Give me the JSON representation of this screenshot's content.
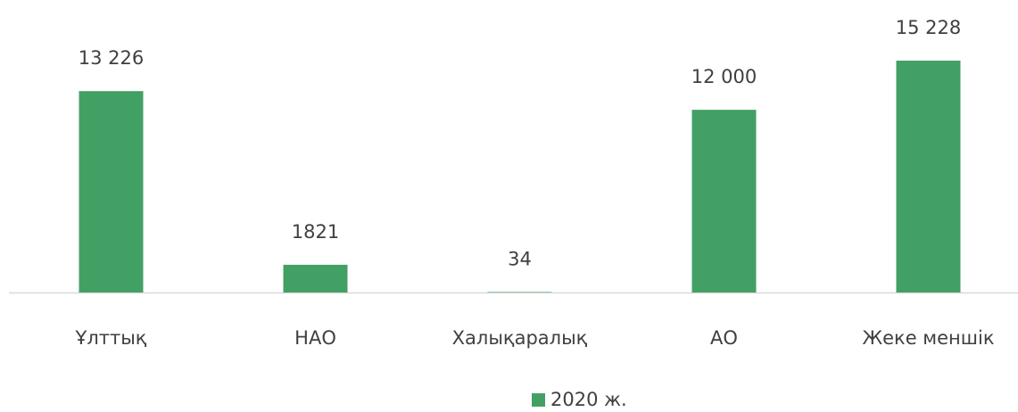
{
  "chart_data": {
    "type": "bar",
    "categories": [
      "Ұлттық",
      "НАО",
      "Халықаралық",
      "АО",
      "Жеке меншік"
    ],
    "series": [
      {
        "name": "2020 ж.",
        "color": "#43a064",
        "values": [
          13226,
          1821,
          34,
          12000,
          15228
        ],
        "value_labels": [
          "13 226",
          "1821",
          "34",
          "12 000",
          "15 228"
        ]
      }
    ]
  }
}
